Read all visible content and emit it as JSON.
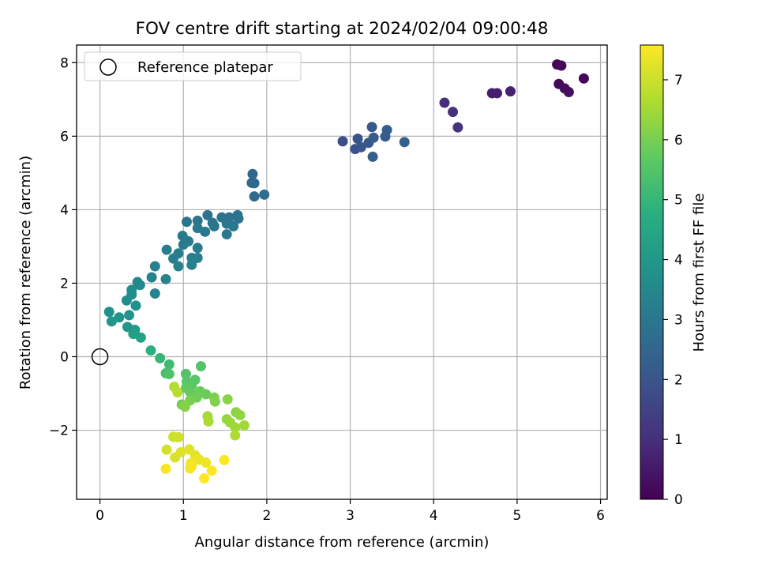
{
  "chart_data": {
    "type": "scatter",
    "title": "FOV centre drift starting at 2024/02/04 09:00:48",
    "xlabel": "Angular distance from reference (arcmin)",
    "ylabel": "Rotation from reference (arcmin)",
    "xlim": [
      -0.28,
      6.08
    ],
    "ylim": [
      -3.88,
      8.48
    ],
    "xticks": [
      0,
      1,
      2,
      3,
      4,
      5,
      6
    ],
    "yticks": [
      -2,
      0,
      2,
      4,
      6,
      8
    ],
    "xtick_labels": [
      "0",
      "1",
      "2",
      "3",
      "4",
      "5",
      "6"
    ],
    "ytick_labels": [
      "−2",
      "0",
      "2",
      "4",
      "6",
      "8"
    ],
    "grid": true,
    "legend": {
      "position": "top-left",
      "entries": [
        {
          "label": "Reference platepar",
          "marker": "open-circle"
        }
      ]
    },
    "reference_point": {
      "x": 0,
      "y": 0
    },
    "colorbar": {
      "label": "Hours from first FF file",
      "colormap": "viridis",
      "range": [
        0,
        7.58
      ],
      "ticks": [
        0,
        1,
        2,
        3,
        4,
        5,
        6,
        7
      ],
      "tick_labels": [
        "0",
        "1",
        "2",
        "3",
        "4",
        "5",
        "6",
        "7"
      ]
    },
    "points": [
      {
        "x": 5.48,
        "y": 7.95,
        "t": 0.05
      },
      {
        "x": 5.53,
        "y": 7.92,
        "t": 0.1
      },
      {
        "x": 5.8,
        "y": 7.57,
        "t": 0.15
      },
      {
        "x": 5.5,
        "y": 7.42,
        "t": 0.2
      },
      {
        "x": 5.57,
        "y": 7.3,
        "t": 0.25
      },
      {
        "x": 5.62,
        "y": 7.2,
        "t": 0.3
      },
      {
        "x": 4.7,
        "y": 7.17,
        "t": 0.6
      },
      {
        "x": 4.76,
        "y": 7.17,
        "t": 0.65
      },
      {
        "x": 4.92,
        "y": 7.22,
        "t": 0.7
      },
      {
        "x": 4.13,
        "y": 6.91,
        "t": 1.0
      },
      {
        "x": 4.23,
        "y": 6.66,
        "t": 1.05
      },
      {
        "x": 4.29,
        "y": 6.24,
        "t": 1.1
      },
      {
        "x": 2.91,
        "y": 5.86,
        "t": 1.8
      },
      {
        "x": 3.06,
        "y": 5.65,
        "t": 1.9
      },
      {
        "x": 3.09,
        "y": 5.93,
        "t": 1.95
      },
      {
        "x": 3.13,
        "y": 5.7,
        "t": 2.0
      },
      {
        "x": 3.22,
        "y": 5.82,
        "t": 2.05
      },
      {
        "x": 3.26,
        "y": 6.25,
        "t": 2.1
      },
      {
        "x": 3.28,
        "y": 5.96,
        "t": 2.15
      },
      {
        "x": 3.42,
        "y": 5.99,
        "t": 2.2
      },
      {
        "x": 3.44,
        "y": 6.17,
        "t": 2.25
      },
      {
        "x": 3.27,
        "y": 5.44,
        "t": 2.3
      },
      {
        "x": 3.65,
        "y": 5.84,
        "t": 2.35
      },
      {
        "x": 1.83,
        "y": 4.97,
        "t": 2.5
      },
      {
        "x": 1.82,
        "y": 4.73,
        "t": 2.55
      },
      {
        "x": 1.85,
        "y": 4.72,
        "t": 2.58
      },
      {
        "x": 1.85,
        "y": 4.36,
        "t": 2.62
      },
      {
        "x": 1.97,
        "y": 4.41,
        "t": 2.66
      },
      {
        "x": 1.29,
        "y": 3.85,
        "t": 2.8
      },
      {
        "x": 1.46,
        "y": 3.79,
        "t": 2.82
      },
      {
        "x": 1.55,
        "y": 3.79,
        "t": 2.84
      },
      {
        "x": 1.65,
        "y": 3.85,
        "t": 2.86
      },
      {
        "x": 1.66,
        "y": 3.76,
        "t": 2.88
      },
      {
        "x": 1.04,
        "y": 3.67,
        "t": 2.9
      },
      {
        "x": 1.17,
        "y": 3.7,
        "t": 2.92
      },
      {
        "x": 1.35,
        "y": 3.64,
        "t": 2.94
      },
      {
        "x": 1.52,
        "y": 3.62,
        "t": 2.96
      },
      {
        "x": 1.37,
        "y": 3.55,
        "t": 2.98
      },
      {
        "x": 1.17,
        "y": 3.5,
        "t": 3.0
      },
      {
        "x": 1.26,
        "y": 3.4,
        "t": 3.02
      },
      {
        "x": 1.6,
        "y": 3.55,
        "t": 3.04
      },
      {
        "x": 1.52,
        "y": 3.33,
        "t": 3.06
      },
      {
        "x": 0.99,
        "y": 3.29,
        "t": 3.08
      },
      {
        "x": 1.06,
        "y": 3.14,
        "t": 3.1
      },
      {
        "x": 1.0,
        "y": 3.05,
        "t": 3.12
      },
      {
        "x": 0.8,
        "y": 2.91,
        "t": 3.14
      },
      {
        "x": 1.17,
        "y": 2.96,
        "t": 3.16
      },
      {
        "x": 0.94,
        "y": 2.81,
        "t": 3.18
      },
      {
        "x": 0.88,
        "y": 2.67,
        "t": 3.2
      },
      {
        "x": 1.1,
        "y": 2.69,
        "t": 3.22
      },
      {
        "x": 1.17,
        "y": 2.69,
        "t": 3.24
      },
      {
        "x": 1.1,
        "y": 2.5,
        "t": 3.26
      },
      {
        "x": 0.94,
        "y": 2.46,
        "t": 3.28
      },
      {
        "x": 0.66,
        "y": 2.46,
        "t": 3.3
      },
      {
        "x": 0.62,
        "y": 2.16,
        "t": 3.32
      },
      {
        "x": 0.79,
        "y": 2.11,
        "t": 3.34
      },
      {
        "x": 0.66,
        "y": 1.72,
        "t": 3.4
      },
      {
        "x": 0.45,
        "y": 2.03,
        "t": 3.5
      },
      {
        "x": 0.48,
        "y": 1.95,
        "t": 3.55
      },
      {
        "x": 0.38,
        "y": 1.82,
        "t": 3.6
      },
      {
        "x": 0.38,
        "y": 1.69,
        "t": 3.65
      },
      {
        "x": 0.32,
        "y": 1.53,
        "t": 3.7
      },
      {
        "x": 0.43,
        "y": 1.39,
        "t": 3.75
      },
      {
        "x": 0.11,
        "y": 1.22,
        "t": 3.8
      },
      {
        "x": 0.23,
        "y": 1.07,
        "t": 3.85
      },
      {
        "x": 0.35,
        "y": 1.13,
        "t": 3.9
      },
      {
        "x": 0.14,
        "y": 0.96,
        "t": 3.95
      },
      {
        "x": 0.33,
        "y": 0.81,
        "t": 4.0
      },
      {
        "x": 0.42,
        "y": 0.73,
        "t": 4.1
      },
      {
        "x": 0.4,
        "y": 0.62,
        "t": 4.2
      },
      {
        "x": 0.49,
        "y": 0.52,
        "t": 4.3
      },
      {
        "x": 0.61,
        "y": 0.17,
        "t": 4.8
      },
      {
        "x": 0.72,
        "y": -0.04,
        "t": 5.0
      },
      {
        "x": 0.83,
        "y": -0.21,
        "t": 5.2
      },
      {
        "x": 0.79,
        "y": -0.45,
        "t": 5.3
      },
      {
        "x": 0.83,
        "y": -0.47,
        "t": 5.4
      },
      {
        "x": 1.03,
        "y": -0.47,
        "t": 5.45
      },
      {
        "x": 1.21,
        "y": -0.26,
        "t": 5.5
      },
      {
        "x": 1.04,
        "y": -0.68,
        "t": 5.55
      },
      {
        "x": 1.14,
        "y": -0.63,
        "t": 5.6
      },
      {
        "x": 1.1,
        "y": -0.78,
        "t": 5.65
      },
      {
        "x": 1.03,
        "y": -0.85,
        "t": 5.7
      },
      {
        "x": 1.08,
        "y": -0.96,
        "t": 5.75
      },
      {
        "x": 1.2,
        "y": -0.94,
        "t": 5.8
      },
      {
        "x": 1.27,
        "y": -1.02,
        "t": 5.85
      },
      {
        "x": 1.16,
        "y": -1.11,
        "t": 5.9
      },
      {
        "x": 0.98,
        "y": -1.3,
        "t": 5.95
      },
      {
        "x": 1.08,
        "y": -1.19,
        "t": 6.0
      },
      {
        "x": 1.37,
        "y": -1.11,
        "t": 6.05
      },
      {
        "x": 1.38,
        "y": -1.22,
        "t": 6.1
      },
      {
        "x": 1.02,
        "y": -1.36,
        "t": 6.15
      },
      {
        "x": 1.53,
        "y": -1.16,
        "t": 6.2
      },
      {
        "x": 1.63,
        "y": -1.51,
        "t": 6.25
      },
      {
        "x": 1.68,
        "y": -1.59,
        "t": 6.3
      },
      {
        "x": 1.52,
        "y": -1.7,
        "t": 6.35
      },
      {
        "x": 1.56,
        "y": -1.79,
        "t": 6.4
      },
      {
        "x": 1.62,
        "y": -1.92,
        "t": 6.45
      },
      {
        "x": 1.73,
        "y": -1.87,
        "t": 6.5
      },
      {
        "x": 1.29,
        "y": -1.62,
        "t": 6.55
      },
      {
        "x": 1.3,
        "y": -1.76,
        "t": 6.6
      },
      {
        "x": 1.62,
        "y": -2.14,
        "t": 6.65
      },
      {
        "x": 0.89,
        "y": -0.82,
        "t": 6.7
      },
      {
        "x": 0.93,
        "y": -0.97,
        "t": 6.75
      },
      {
        "x": 0.88,
        "y": -2.18,
        "t": 7.0
      },
      {
        "x": 0.94,
        "y": -2.19,
        "t": 7.05
      },
      {
        "x": 0.8,
        "y": -2.53,
        "t": 7.1
      },
      {
        "x": 0.9,
        "y": -2.74,
        "t": 7.15
      },
      {
        "x": 0.97,
        "y": -2.6,
        "t": 7.2
      },
      {
        "x": 1.07,
        "y": -2.52,
        "t": 7.25
      },
      {
        "x": 1.14,
        "y": -2.68,
        "t": 7.3
      },
      {
        "x": 1.19,
        "y": -2.8,
        "t": 7.35
      },
      {
        "x": 1.27,
        "y": -2.88,
        "t": 7.4
      },
      {
        "x": 1.09,
        "y": -2.9,
        "t": 7.45
      },
      {
        "x": 1.1,
        "y": -2.98,
        "t": 7.48
      },
      {
        "x": 1.08,
        "y": -3.04,
        "t": 7.5
      },
      {
        "x": 0.79,
        "y": -3.05,
        "t": 7.52
      },
      {
        "x": 1.34,
        "y": -3.1,
        "t": 7.54
      },
      {
        "x": 1.49,
        "y": -2.81,
        "t": 7.56
      },
      {
        "x": 1.25,
        "y": -3.31,
        "t": 7.58
      }
    ]
  }
}
